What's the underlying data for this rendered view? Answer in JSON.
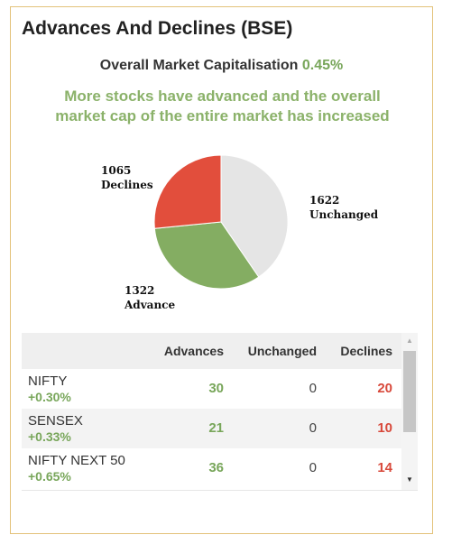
{
  "widget": {
    "title": "Advances And Declines (BSE)",
    "mcap_label": "Overall Market Capitalisation",
    "mcap_value": "0.45%",
    "message_line1": "More stocks have advanced and the overall",
    "message_line2": "market cap of the entire market has increased"
  },
  "chart_data": {
    "type": "pie",
    "slices": [
      {
        "label": "Unchanged",
        "value": 1622,
        "color": "#e5e5e5"
      },
      {
        "label": "Advance",
        "value": 1322,
        "color": "#84ad62"
      },
      {
        "label": "Declines",
        "value": 1065,
        "color": "#e24e3c"
      }
    ],
    "labels": {
      "declines": {
        "value": "1065",
        "name": "Declines"
      },
      "unchanged": {
        "value": "1622",
        "name": "Unchanged"
      },
      "advance": {
        "value": "1322",
        "name": "Advance"
      }
    }
  },
  "table": {
    "headers": {
      "advances": "Advances",
      "unchanged": "Unchanged",
      "declines": "Declines"
    },
    "rows": [
      {
        "name": "NIFTY",
        "change": "+0.30%",
        "advances": "30",
        "unchanged": "0",
        "declines": "20"
      },
      {
        "name": "SENSEX",
        "change": "+0.33%",
        "advances": "21",
        "unchanged": "0",
        "declines": "10"
      },
      {
        "name": "NIFTY NEXT 50",
        "change": "+0.65%",
        "advances": "36",
        "unchanged": "0",
        "declines": "14"
      }
    ]
  },
  "scrollbar": {
    "up_icon": "triangle-up",
    "down_icon": "triangle-down"
  }
}
